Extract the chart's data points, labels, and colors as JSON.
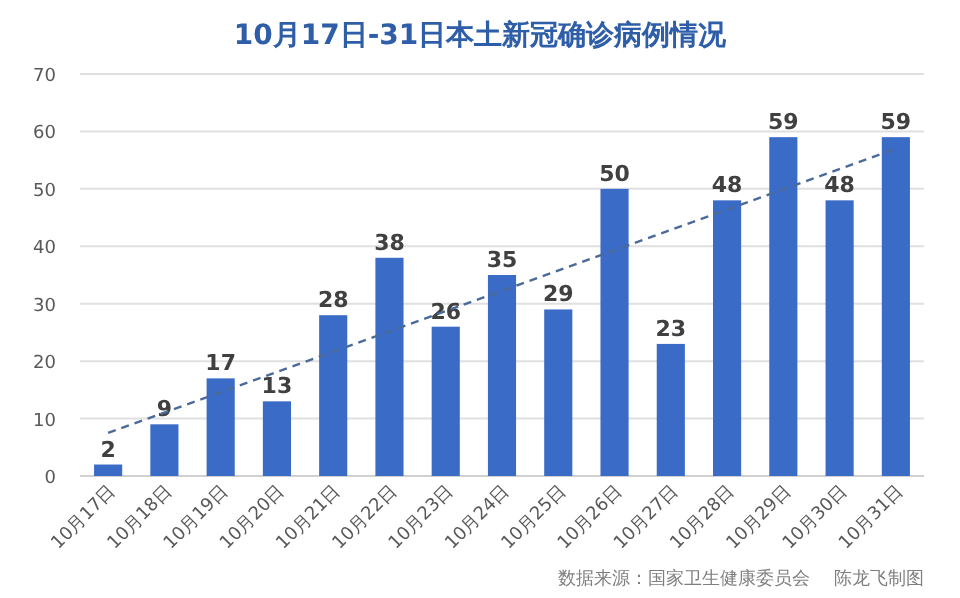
{
  "chart_data": {
    "type": "bar",
    "title": "10月17日-31日本土新冠确诊病例情况",
    "categories": [
      "10月17日",
      "10月18日",
      "10月19日",
      "10月20日",
      "10月21日",
      "10月22日",
      "10月23日",
      "10月24日",
      "10月25日",
      "10月26日",
      "10月27日",
      "10月28日",
      "10月29日",
      "10月30日",
      "10月31日"
    ],
    "series": [
      {
        "color": "#3a6bc6",
        "values": [
          2,
          9,
          17,
          13,
          28,
          38,
          26,
          35,
          29,
          50,
          23,
          48,
          59,
          48,
          59
        ],
        "value_labels": [
          "2",
          "9",
          "17",
          "13",
          "28",
          "38",
          "26",
          "35",
          "29",
          "50",
          "23",
          "48",
          "59",
          "48",
          "59"
        ]
      },
      {
        "type": "line",
        "color": "#4a6a9a",
        "line_style": "dashed",
        "x": [
          "10月17日",
          "10月31日"
        ],
        "values": [
          7.5,
          57
        ]
      }
    ],
    "ylim": [
      0,
      70
    ],
    "yticks": [
      0,
      10,
      20,
      30,
      40,
      50,
      60,
      70
    ],
    "grid": "y",
    "annotations": [
      "数据来源：国家卫生健康委员会",
      "陈龙飞制图"
    ]
  }
}
